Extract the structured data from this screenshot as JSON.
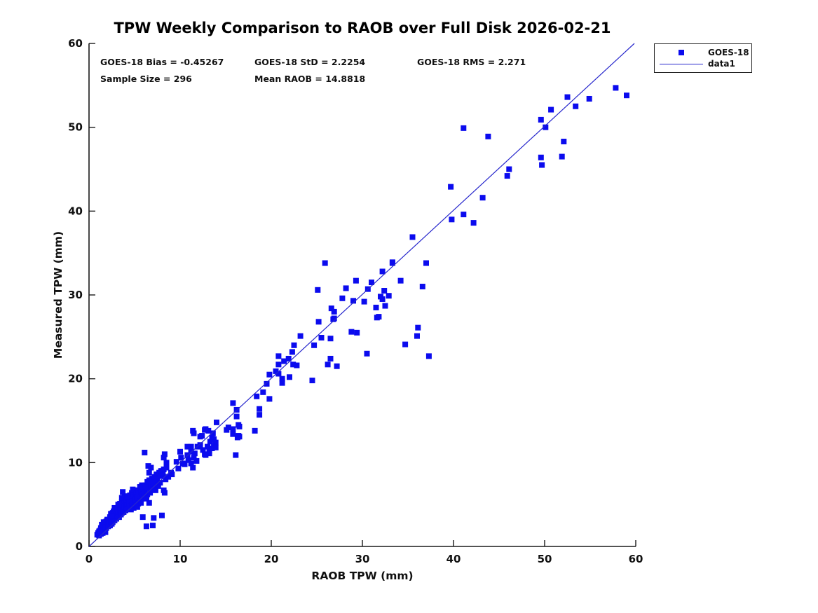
{
  "title": "TPW Weekly Comparison to RAOB over Full Disk 2026-02-21",
  "stats": {
    "bias": "GOES-18 Bias = -0.45267",
    "std": "GOES-18 StD = 2.2254",
    "rms": "GOES-18 RMS = 2.271",
    "sample": "Sample Size = 296",
    "mean_raob": "Mean RAOB = 14.8818"
  },
  "legend": {
    "items": [
      {
        "label": "GOES-18",
        "type": "marker"
      },
      {
        "label": "data1",
        "type": "line"
      }
    ]
  },
  "colors": {
    "marker": "#0b0bee",
    "line": "#2626cc",
    "axis": "#1a1a1a",
    "text": "#111111"
  },
  "chart_data": {
    "type": "scatter",
    "title": "TPW Weekly Comparison to RAOB over Full Disk 2026-02-21",
    "xlabel": "RAOB TPW (mm)",
    "ylabel": "Measured TPW (mm)",
    "xlim": [
      0,
      60
    ],
    "ylim": [
      0,
      60
    ],
    "xticks": [
      0,
      10,
      20,
      30,
      40,
      50,
      60
    ],
    "yticks": [
      0,
      10,
      20,
      30,
      40,
      50,
      60
    ],
    "grid": false,
    "legend_position": "outside-top-right",
    "sample_size": 296,
    "series": [
      {
        "name": "GOES-18",
        "type": "scatter",
        "marker": "square",
        "points": [
          [
            57.8,
            54.7
          ],
          [
            59,
            53.8
          ],
          [
            52.5,
            53.6
          ],
          [
            54.9,
            53.4
          ],
          [
            53.4,
            52.5
          ],
          [
            50.7,
            52.1
          ],
          [
            49.6,
            50.9
          ],
          [
            50.1,
            50
          ],
          [
            41.1,
            49.9
          ],
          [
            43.8,
            48.9
          ],
          [
            52.1,
            48.3
          ],
          [
            51.9,
            46.5
          ],
          [
            49.6,
            46.4
          ],
          [
            49.7,
            45.5
          ],
          [
            46.1,
            45
          ],
          [
            45.9,
            44.2
          ],
          [
            39.7,
            42.9
          ],
          [
            43.2,
            41.6
          ],
          [
            41.1,
            39.6
          ],
          [
            39.8,
            39
          ],
          [
            42.2,
            38.6
          ],
          [
            35.5,
            36.9
          ],
          [
            33.3,
            33.8
          ],
          [
            37,
            33.8
          ],
          [
            34.2,
            31.7
          ],
          [
            36.6,
            31
          ],
          [
            36.1,
            26.1
          ],
          [
            36,
            25.1
          ],
          [
            34.7,
            24.1
          ],
          [
            37.3,
            22.7
          ],
          [
            25.9,
            33.8
          ],
          [
            33.3,
            33.9
          ],
          [
            32.2,
            32.8
          ],
          [
            29.3,
            31.7
          ],
          [
            31,
            31.5
          ],
          [
            25.1,
            30.6
          ],
          [
            28.2,
            30.8
          ],
          [
            30.6,
            30.7
          ],
          [
            32.4,
            30.5
          ],
          [
            27.8,
            29.6
          ],
          [
            32,
            29.8
          ],
          [
            32.9,
            29.9
          ],
          [
            29,
            29.3
          ],
          [
            30.2,
            29.2
          ],
          [
            32.2,
            29.5
          ],
          [
            32.5,
            28.7
          ],
          [
            26.6,
            28.4
          ],
          [
            26.9,
            28
          ],
          [
            31.5,
            28.5
          ],
          [
            26.8,
            27.1
          ],
          [
            31.8,
            27.4
          ],
          [
            25.2,
            26.8
          ],
          [
            26.9,
            27.2
          ],
          [
            31.6,
            27.3
          ],
          [
            28.8,
            25.6
          ],
          [
            29.4,
            25.5
          ],
          [
            23.2,
            25.1
          ],
          [
            25.5,
            24.9
          ],
          [
            26.5,
            24.8
          ],
          [
            24.7,
            24
          ],
          [
            22.5,
            24
          ],
          [
            22.3,
            23.2
          ],
          [
            30.5,
            23
          ],
          [
            20.8,
            22.7
          ],
          [
            26.5,
            22.4
          ],
          [
            21.9,
            22.4
          ],
          [
            21.4,
            22.1
          ],
          [
            20.8,
            21.7
          ],
          [
            22.4,
            21.7
          ],
          [
            22.8,
            21.6
          ],
          [
            26.2,
            21.7
          ],
          [
            27.2,
            21.5
          ],
          [
            20.5,
            20.9
          ],
          [
            20.8,
            20.6
          ],
          [
            19.8,
            20.5
          ],
          [
            21.2,
            20
          ],
          [
            22,
            20.2
          ],
          [
            21.2,
            19.5
          ],
          [
            24.5,
            19.8
          ],
          [
            19.5,
            19.4
          ],
          [
            19.8,
            17.6
          ],
          [
            19.1,
            18.4
          ],
          [
            18.4,
            17.9
          ],
          [
            15.8,
            17.1
          ],
          [
            18.7,
            16.4
          ],
          [
            16.2,
            16.3
          ],
          [
            18.7,
            15.7
          ],
          [
            16.2,
            15.5
          ],
          [
            14,
            14.8
          ],
          [
            16.4,
            14.5
          ],
          [
            15.3,
            14.2
          ],
          [
            15.8,
            14
          ],
          [
            16.5,
            14.3
          ],
          [
            15.1,
            13.9
          ],
          [
            12.8,
            14
          ],
          [
            13.6,
            13.5
          ],
          [
            12.4,
            13.2
          ],
          [
            15.8,
            13.4
          ],
          [
            16.4,
            13.2
          ],
          [
            18.2,
            13.8
          ],
          [
            16.5,
            13.1
          ],
          [
            13.5,
            13
          ],
          [
            16.3,
            13
          ],
          [
            13.7,
            12.8
          ],
          [
            13.3,
            12.5
          ],
          [
            13.9,
            12.4
          ],
          [
            12.2,
            12.1
          ],
          [
            13,
            11.9
          ],
          [
            13.7,
            11.9
          ],
          [
            13.9,
            11.8
          ],
          [
            12.5,
            11.5
          ],
          [
            13.2,
            11.4
          ],
          [
            13.5,
            11.7
          ],
          [
            13.2,
            11.1
          ],
          [
            16.1,
            10.9
          ],
          [
            12.8,
            10.9
          ],
          [
            11.4,
            13.8
          ],
          [
            12.7,
            13.9
          ],
          [
            13.1,
            13.8
          ],
          [
            11.2,
            11.9
          ],
          [
            11.9,
            11.9
          ],
          [
            11.2,
            11.3
          ],
          [
            11.6,
            11.1
          ],
          [
            12.7,
            11
          ],
          [
            10.8,
            10.9
          ],
          [
            11.5,
            10.6
          ],
          [
            10.9,
            10.3
          ],
          [
            11.8,
            10.2
          ],
          [
            11.2,
            9.9
          ],
          [
            10.5,
            9.8
          ],
          [
            11.4,
            9.4
          ],
          [
            12.2,
            13.1
          ],
          [
            11.5,
            13.5
          ],
          [
            10.8,
            11.9
          ],
          [
            10,
            11.3
          ],
          [
            6.1,
            11.2
          ],
          [
            8.2,
            10.6
          ],
          [
            8.3,
            11
          ],
          [
            8.5,
            10
          ],
          [
            8.1,
            9
          ],
          [
            9.1,
            8.6
          ],
          [
            6.5,
            9.6
          ],
          [
            6.8,
            9.4
          ],
          [
            6.6,
            8.8
          ],
          [
            7.9,
            9
          ],
          [
            3.7,
            6.5
          ],
          [
            3.9,
            5.9
          ],
          [
            5.1,
            6.7
          ],
          [
            6.2,
            7.1
          ],
          [
            6.9,
            7.5
          ],
          [
            7.5,
            7.4
          ],
          [
            8.2,
            6.7
          ],
          [
            5.5,
            5.3
          ],
          [
            6.6,
            5.2
          ],
          [
            7.2,
            7.4
          ],
          [
            5.6,
            7.1
          ],
          [
            8.3,
            6.4
          ],
          [
            5.9,
            3.5
          ],
          [
            7.1,
            3.4
          ],
          [
            8,
            3.7
          ],
          [
            7,
            2.5
          ],
          [
            6.3,
            2.4
          ],
          [
            1.8,
            1.7
          ],
          [
            0.9,
            1.4
          ],
          [
            1,
            1.6
          ],
          [
            1.1,
            1.3
          ],
          [
            1.2,
            1.9
          ],
          [
            1.3,
            1.5
          ],
          [
            1.3,
            2.2
          ],
          [
            1.4,
            1.8
          ],
          [
            1.5,
            2.4
          ],
          [
            1.5,
            1.6
          ],
          [
            1.6,
            2.1
          ],
          [
            1.7,
            2.6
          ],
          [
            1.7,
            1.9
          ],
          [
            1.8,
            2.9
          ],
          [
            1.9,
            2.2
          ],
          [
            1.9,
            3
          ],
          [
            2,
            2.5
          ],
          [
            1.1,
            1.8
          ],
          [
            1.4,
            2.6
          ],
          [
            1.6,
            2.9
          ],
          [
            1.8,
            2.3
          ],
          [
            2,
            3.2
          ],
          [
            1.2,
            1.6
          ],
          [
            2.1,
            2.4
          ],
          [
            2.1,
            3.2
          ],
          [
            2.2,
            2.8
          ],
          [
            2.3,
            3.5
          ],
          [
            2.3,
            2.5
          ],
          [
            2.4,
            3
          ],
          [
            2.4,
            3.9
          ],
          [
            2.5,
            2.7
          ],
          [
            2.5,
            3.4
          ],
          [
            2.6,
            4
          ],
          [
            2.6,
            2.9
          ],
          [
            2.7,
            3.3
          ],
          [
            2.7,
            4.2
          ],
          [
            2.8,
            3.1
          ],
          [
            2.8,
            3.8
          ],
          [
            2.9,
            4.4
          ],
          [
            2.9,
            3.5
          ],
          [
            3,
            3.3
          ],
          [
            3,
            4.1
          ],
          [
            2.6,
            3.6
          ],
          [
            2.8,
            4.6
          ],
          [
            3.1,
            3.6
          ],
          [
            3.1,
            4.5
          ],
          [
            3.2,
            3.9
          ],
          [
            3.3,
            4.8
          ],
          [
            3.3,
            3.5
          ],
          [
            3.4,
            4.2
          ],
          [
            3.4,
            5.1
          ],
          [
            3.5,
            3.8
          ],
          [
            3.5,
            4.6
          ],
          [
            3.6,
            5.3
          ],
          [
            3.6,
            4
          ],
          [
            3.7,
            4.4
          ],
          [
            3.8,
            5
          ],
          [
            3.8,
            4.1
          ],
          [
            3.9,
            5.5
          ],
          [
            3.9,
            4.7
          ],
          [
            4,
            4.3
          ],
          [
            4,
            5.2
          ],
          [
            3.2,
            5
          ],
          [
            3.6,
            5.8
          ],
          [
            4.1,
            4.6
          ],
          [
            4.1,
            5.5
          ],
          [
            4.2,
            4.9
          ],
          [
            4.3,
            5.8
          ],
          [
            4.3,
            4.5
          ],
          [
            4.4,
            5.2
          ],
          [
            4.5,
            6.1
          ],
          [
            4.5,
            4.8
          ],
          [
            4.6,
            5.6
          ],
          [
            4.7,
            6.4
          ],
          [
            4.7,
            5
          ],
          [
            4.8,
            5.4
          ],
          [
            4.9,
            6.2
          ],
          [
            4.9,
            4.6
          ],
          [
            5,
            5.8
          ],
          [
            5,
            6.6
          ],
          [
            4.2,
            6
          ],
          [
            4.6,
            4.4
          ],
          [
            4.8,
            6.8
          ],
          [
            5.1,
            5.5
          ],
          [
            5.2,
            6.3
          ],
          [
            5.2,
            4.9
          ],
          [
            5.3,
            5.9
          ],
          [
            5.4,
            6.7
          ],
          [
            5.4,
            5.1
          ],
          [
            5.5,
            6.1
          ],
          [
            5.6,
            7
          ],
          [
            5.6,
            5.4
          ],
          [
            5.7,
            6.5
          ],
          [
            5.8,
            7.3
          ],
          [
            5.8,
            5.7
          ],
          [
            5.9,
            6.2
          ],
          [
            6,
            7.1
          ],
          [
            6,
            5.9
          ],
          [
            5.3,
            4.7
          ],
          [
            5.7,
            5.2
          ],
          [
            6.1,
            6.5
          ],
          [
            6.2,
            7.3
          ],
          [
            6.3,
            6
          ],
          [
            6.4,
            7.7
          ],
          [
            6.4,
            6.2
          ],
          [
            6.5,
            7
          ],
          [
            6.6,
            7.9
          ],
          [
            6.7,
            6.4
          ],
          [
            6.8,
            7.2
          ],
          [
            6.9,
            8.1
          ],
          [
            7,
            6.8
          ],
          [
            7,
            7.7
          ],
          [
            6.3,
            5.7
          ],
          [
            7.1,
            7.5
          ],
          [
            7.2,
            8.3
          ],
          [
            7.3,
            7
          ],
          [
            7.4,
            8.6
          ],
          [
            7.5,
            8
          ],
          [
            7.6,
            7.2
          ],
          [
            7.7,
            8.8
          ],
          [
            7.8,
            7.6
          ],
          [
            7.9,
            8.4
          ],
          [
            8,
            9
          ],
          [
            7.3,
            6.7
          ],
          [
            8.1,
            8.5
          ],
          [
            8.2,
            9.2
          ],
          [
            8.4,
            8
          ],
          [
            8.5,
            9.4
          ],
          [
            8.7,
            8.3
          ],
          [
            9,
            8.8
          ],
          [
            9.6,
            10.1
          ],
          [
            9.8,
            9.3
          ],
          [
            10.1,
            10.6
          ],
          [
            10.3,
            9.9
          ]
        ]
      },
      {
        "name": "data1",
        "type": "line",
        "points": [
          [
            0,
            0
          ],
          [
            59.85,
            60
          ]
        ]
      }
    ]
  }
}
